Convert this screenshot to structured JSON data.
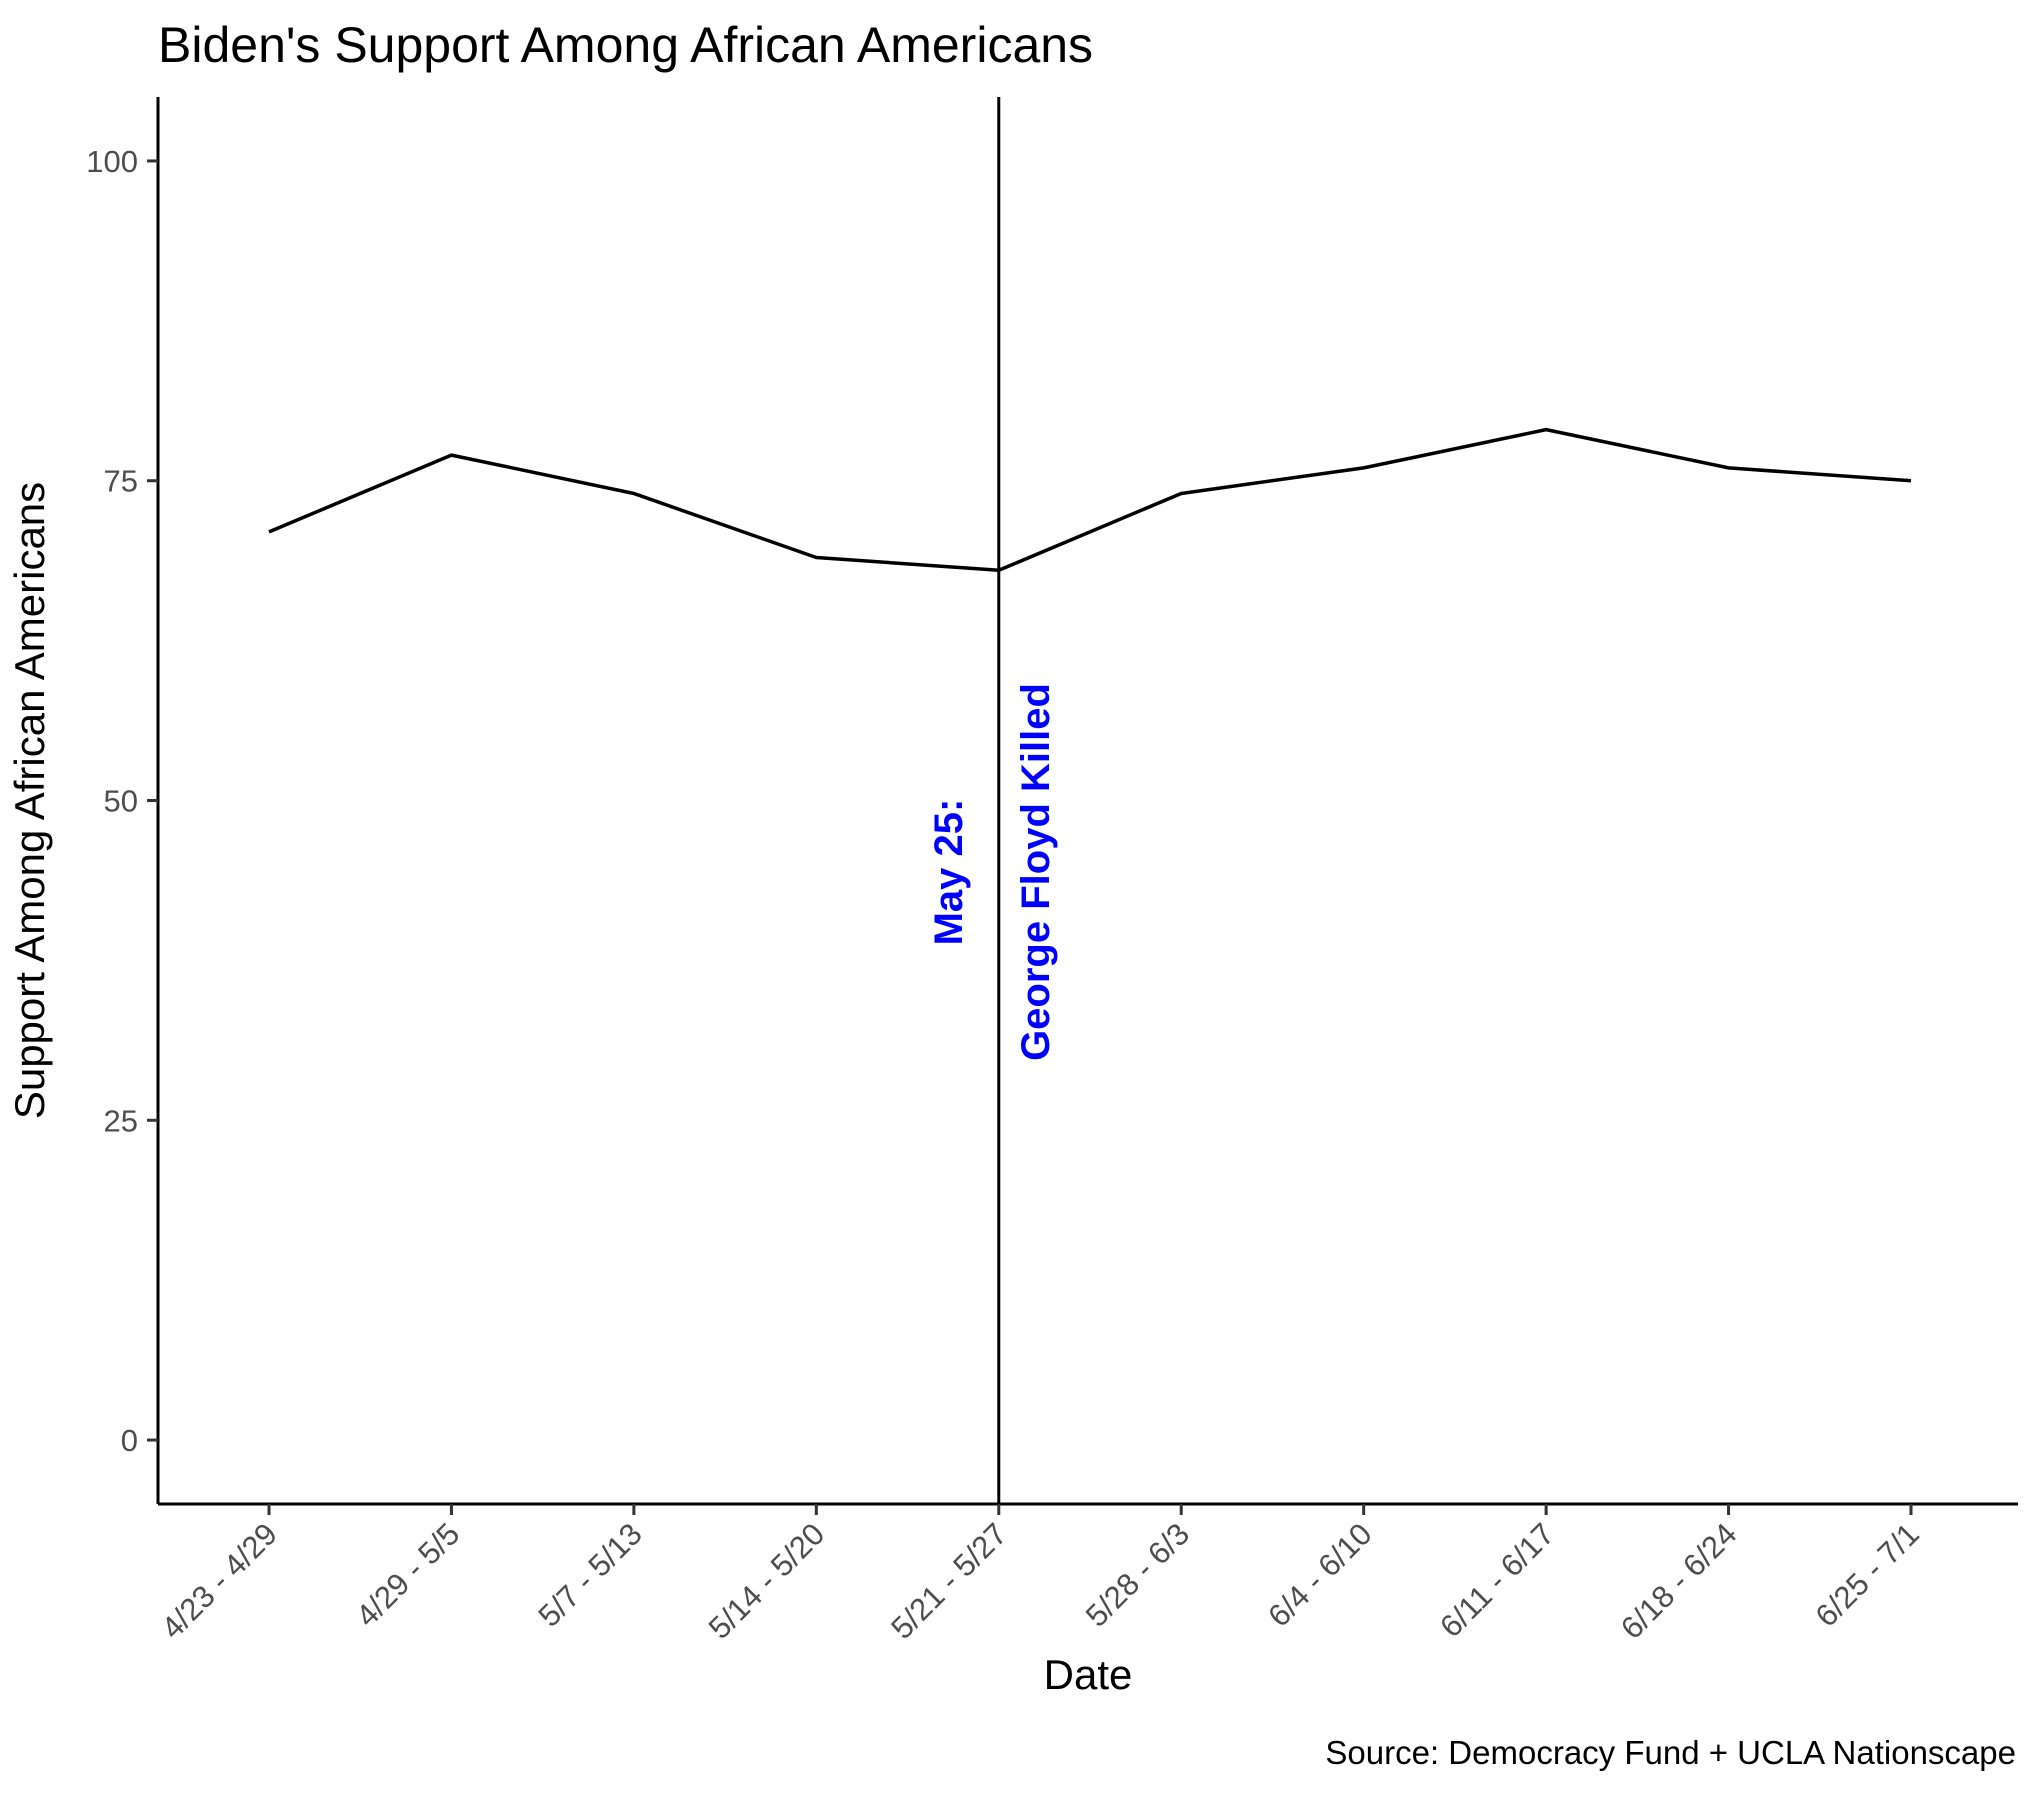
{
  "chart_data": {
    "type": "line",
    "title": "Biden's Support Among African Americans",
    "xlabel": "Date",
    "ylabel": "Support Among African Americans",
    "caption": "Source: Democracy Fund + UCLA Nationscape",
    "categories": [
      "4/23 - 4/29",
      "4/29 - 5/5",
      "5/7 - 5/13",
      "5/14 - 5/20",
      "5/21 - 5/27",
      "5/28 - 6/3",
      "6/4 - 6/10",
      "6/11 - 6/17",
      "6/18 - 6/24",
      "6/25 - 7/1"
    ],
    "series": [
      {
        "values": [
          71,
          77,
          74,
          69,
          68,
          74,
          76,
          79,
          76,
          75
        ]
      }
    ],
    "ylim": [
      -5,
      105
    ],
    "yticks": [
      0,
      25,
      50,
      75,
      100
    ],
    "vline": {
      "category": "5/21 - 5/27",
      "label_line1": "May 25:",
      "label_line2": "George Floyd Killed",
      "label_color": "#0000FF"
    },
    "line_color": "#000000",
    "grid": false,
    "legend": "none"
  }
}
